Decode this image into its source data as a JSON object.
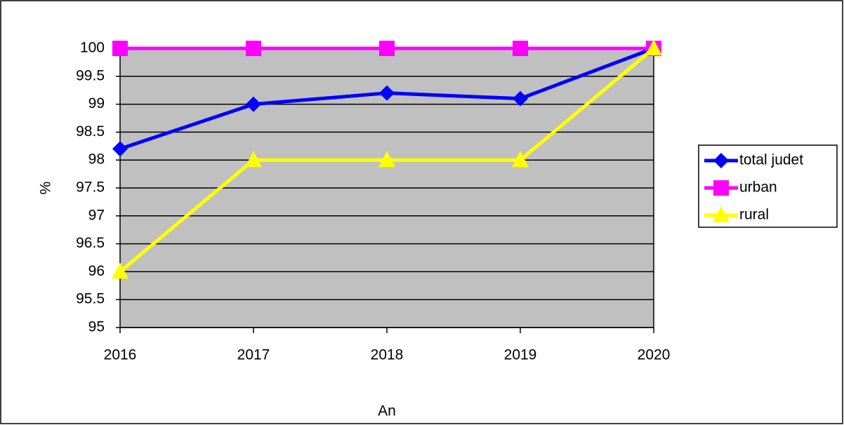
{
  "chart_data": {
    "type": "line",
    "x_label": "An",
    "y_label": "%",
    "categories": [
      "2016",
      "2017",
      "2018",
      "2019",
      "2020"
    ],
    "series": [
      {
        "name": "total judet",
        "color": "#0000ff",
        "marker": "diamond",
        "values": [
          98.2,
          99,
          99.2,
          99.1,
          100
        ]
      },
      {
        "name": "urban",
        "color": "#ff00ff",
        "marker": "square",
        "values": [
          100,
          100,
          100,
          100,
          100
        ]
      },
      {
        "name": "rural",
        "color": "#ffff00",
        "marker": "triangle",
        "values": [
          96,
          98,
          98,
          98,
          100
        ]
      }
    ],
    "ylim": [
      95,
      100
    ],
    "yticks": [
      95,
      95.5,
      96,
      96.5,
      97,
      97.5,
      98,
      98.5,
      99,
      99.5,
      100
    ],
    "grid": true,
    "legend": "right",
    "plot_background": "#c0c0c0"
  }
}
